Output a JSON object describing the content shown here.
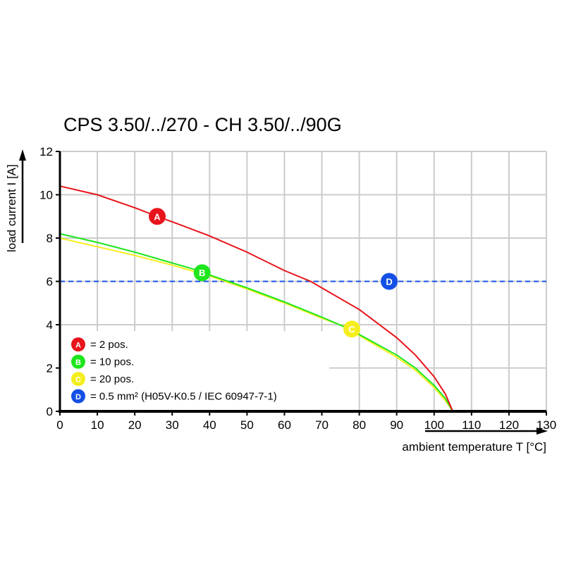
{
  "chart_data": {
    "type": "line",
    "title": "CPS 3.50/../270 - CH 3.50/../90G",
    "xlabel": "ambient temperature T [°C]",
    "ylabel": "load current I [A]",
    "xlim": [
      0,
      130
    ],
    "ylim": [
      0,
      12
    ],
    "xticks": [
      0,
      10,
      20,
      30,
      40,
      50,
      60,
      70,
      80,
      90,
      100,
      110,
      120,
      130
    ],
    "yticks": [
      0,
      2,
      4,
      6,
      8,
      10,
      12
    ],
    "grid": true,
    "legend_position": "bottom-left",
    "series": [
      {
        "name": "= 2 pos.",
        "marker": "A",
        "color": "#e8141b",
        "marker_at": [
          26,
          9.0
        ],
        "x": [
          0,
          10,
          20,
          26,
          30,
          40,
          50,
          60,
          67,
          70,
          80,
          90,
          95,
          100,
          103,
          105
        ],
        "y": [
          10.4,
          10.0,
          9.4,
          9.0,
          8.75,
          8.1,
          7.35,
          6.5,
          6.0,
          5.7,
          4.7,
          3.4,
          2.6,
          1.6,
          0.8,
          0
        ]
      },
      {
        "name": "= 10 pos.",
        "marker": "B",
        "color": "#1ee61e",
        "marker_at": [
          38,
          6.4
        ],
        "x": [
          0,
          10,
          20,
          30,
          38,
          40,
          50,
          60,
          70,
          78,
          80,
          90,
          95,
          100,
          103,
          105
        ],
        "y": [
          8.2,
          7.8,
          7.35,
          6.85,
          6.45,
          6.3,
          5.7,
          5.05,
          4.35,
          3.75,
          3.55,
          2.6,
          2.0,
          1.2,
          0.6,
          0
        ]
      },
      {
        "name": "= 20 pos.",
        "marker": "C",
        "color": "#f5ee1e",
        "marker_at": [
          78,
          3.8
        ],
        "x": [
          0,
          10,
          20,
          30,
          40,
          50,
          60,
          70,
          78,
          80,
          90,
          95,
          100,
          103,
          105
        ],
        "y": [
          8.0,
          7.6,
          7.2,
          6.75,
          6.25,
          5.65,
          5.0,
          4.3,
          3.8,
          3.5,
          2.5,
          1.9,
          1.1,
          0.5,
          0
        ]
      },
      {
        "name": "= 0.5 mm² (H05V-K0.5 / IEC 60947-7-1)",
        "marker": "D",
        "color": "#1450e6",
        "marker_at": [
          88,
          6.0
        ],
        "dashed": true,
        "x": [
          0,
          130
        ],
        "y": [
          6,
          6
        ]
      }
    ]
  }
}
